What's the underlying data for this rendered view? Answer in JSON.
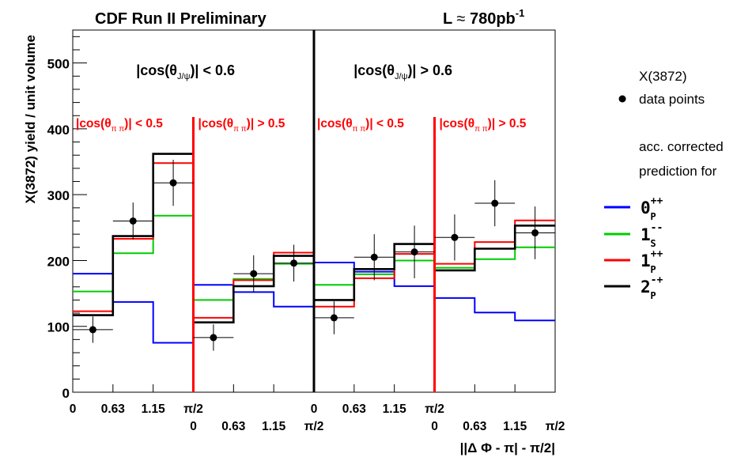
{
  "chart_data": {
    "type": "histogram",
    "title_left": "CDF Run II Preliminary",
    "luminosity": {
      "prefix": "L",
      "approx": "≈",
      "value": "780pb",
      "exp": "-1"
    },
    "ylabel": "X(3872) yield / unit volume",
    "xlabel": "||Δ Φ - π| - π/2|",
    "ylim": [
      0,
      550
    ],
    "yticks_major": [
      0,
      100,
      200,
      300,
      400,
      500
    ],
    "yticks_minor_step": 20,
    "region_labels": [
      {
        "pre": "|cos(θ",
        "sub": "J/ψ",
        "post": ")| < 0.6"
      },
      {
        "pre": "|cos(θ",
        "sub": "J/ψ",
        "post": ")| > 0.6"
      }
    ],
    "subregion_labels": [
      {
        "pre": "|cos(θ",
        "sub": "π π",
        "post": ")| < 0.5"
      },
      {
        "pre": "|cos(θ",
        "sub": "π π",
        "post": ")| > 0.5"
      },
      {
        "pre": "|cos(θ",
        "sub": "π π",
        "post": ")| < 0.5"
      },
      {
        "pre": "|cos(θ",
        "sub": "π π",
        "post": ")| > 0.5"
      }
    ],
    "x_tick_labels_upper": [
      "0",
      "0.63",
      "1.15",
      "π/2",
      "0",
      "0.63",
      "1.15",
      "π/2"
    ],
    "x_tick_labels_lower": [
      "0",
      "0.63",
      "1.15",
      "π/2",
      "0",
      "0.63",
      "1.15",
      "π/2"
    ],
    "bins_per_panel": 3,
    "panels": 4,
    "data_points": {
      "name": "data points",
      "values": [
        95,
        260,
        318,
        83,
        180,
        196,
        113,
        205,
        213,
        235,
        287,
        242
      ],
      "errors": [
        20,
        28,
        35,
        20,
        28,
        28,
        25,
        35,
        40,
        35,
        35,
        40
      ]
    },
    "legend": {
      "title": "X(3872)",
      "data_label": "data points",
      "note_line1": "acc. corrected",
      "note_line2": "prediction for"
    },
    "series": [
      {
        "name": "0++P",
        "base": "0",
        "sup": "++",
        "sub": "P",
        "color": "#0000ff",
        "values": [
          180,
          137,
          75,
          163,
          152,
          130,
          197,
          183,
          161,
          143,
          121,
          109
        ]
      },
      {
        "name": "1--S",
        "base": "1",
        "sup": "--",
        "sub": "S",
        "color": "#00cc00",
        "values": [
          153,
          211,
          268,
          140,
          172,
          195,
          163,
          179,
          200,
          189,
          202,
          220
        ]
      },
      {
        "name": "1++P",
        "base": "1",
        "sup": "++",
        "sub": "P",
        "color": "#ff0000",
        "values": [
          123,
          233,
          348,
          113,
          170,
          212,
          130,
          173,
          210,
          195,
          228,
          261
        ]
      },
      {
        "name": "2-+P",
        "base": "2",
        "sup": "-+",
        "sub": "P",
        "color": "#000000",
        "values": [
          117,
          237,
          362,
          106,
          161,
          207,
          140,
          187,
          225,
          185,
          218,
          253
        ]
      }
    ]
  }
}
